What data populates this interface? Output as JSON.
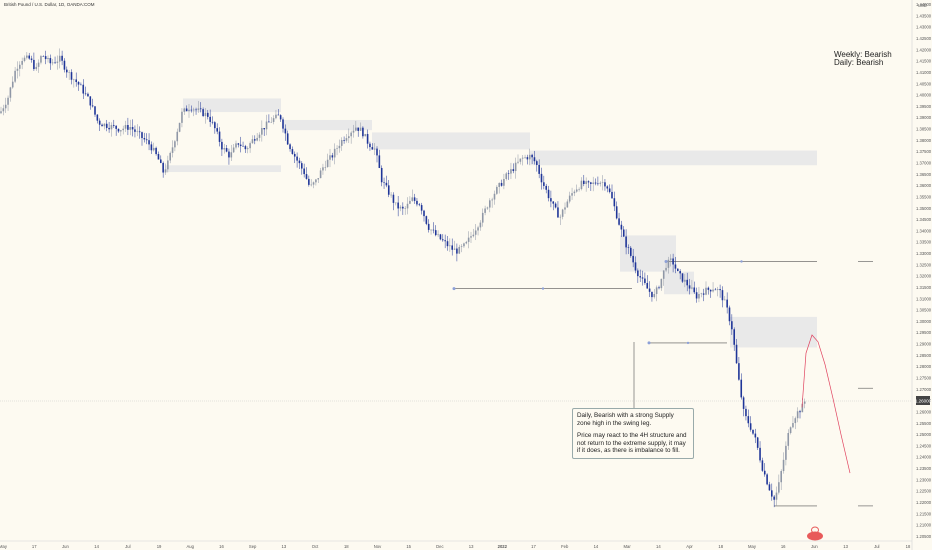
{
  "header": {
    "symbol_title": "British Pound / U.S. Dollar, 1D, OANDA:COM"
  },
  "bias": {
    "weekly": "Weekly: Bearish",
    "daily": "Daily: Bearish"
  },
  "note": {
    "line1": "Daily, Bearish with a strong Supply zone high in the swing leg.",
    "line2": "Price may react to the 4H structure and not return to the extreme supply, it may if it does, as there is imbalance to fill."
  },
  "price_axis": {
    "currency": "USD"
  },
  "colors": {
    "bull": "#8f97a6",
    "bear": "#1f3598",
    "zone": "#e9e9e9",
    "projection": "#e0425e",
    "background": "#fdfaf1"
  },
  "chart_data": {
    "type": "candlestick",
    "x_ticks": [
      "May",
      "17",
      "Jun",
      "14",
      "Jul",
      "19",
      "Aug",
      "16",
      "Sep",
      "13",
      "Oct",
      "18",
      "Nov",
      "15",
      "Dec",
      "13",
      "2022",
      "17",
      "Feb",
      "14",
      "Mar",
      "14",
      "Apr",
      "18",
      "May",
      "16",
      "Jun",
      "13",
      "Jul",
      "18"
    ],
    "y_ticks": [
      "1.44000",
      "1.43500",
      "1.43000",
      "1.42500",
      "1.42000",
      "1.41500",
      "1.41000",
      "1.40500",
      "1.40000",
      "1.39500",
      "1.39000",
      "1.38500",
      "1.38000",
      "1.37500",
      "1.37000",
      "1.36500",
      "1.36000",
      "1.35500",
      "1.35000",
      "1.34500",
      "1.34000",
      "1.33500",
      "1.33000",
      "1.32500",
      "1.32000",
      "1.31500",
      "1.31000",
      "1.30500",
      "1.30000",
      "1.29500",
      "1.29000",
      "1.28500",
      "1.28000",
      "1.27500",
      "1.27000",
      "1.26500",
      "1.26000",
      "1.25500",
      "1.25000",
      "1.24500",
      "1.24000",
      "1.23500",
      "1.23000",
      "1.22500",
      "1.22000",
      "1.21500",
      "1.21000",
      "1.20500"
    ],
    "ylim": [
      1.203,
      1.442
    ],
    "last_price": "1.26000",
    "waypoints": [
      [
        0,
        1.392
      ],
      [
        8,
        1.399
      ],
      [
        16,
        1.412
      ],
      [
        22,
        1.416
      ],
      [
        30,
        1.416
      ],
      [
        36,
        1.411
      ],
      [
        42,
        1.418
      ],
      [
        50,
        1.414
      ],
      [
        60,
        1.416
      ],
      [
        68,
        1.41
      ],
      [
        80,
        1.404
      ],
      [
        90,
        1.397
      ],
      [
        98,
        1.388
      ],
      [
        104,
        1.387
      ],
      [
        112,
        1.386
      ],
      [
        120,
        1.385
      ],
      [
        130,
        1.386
      ],
      [
        140,
        1.382
      ],
      [
        150,
        1.378
      ],
      [
        158,
        1.372
      ],
      [
        163,
        1.366
      ],
      [
        168,
        1.37
      ],
      [
        175,
        1.381
      ],
      [
        182,
        1.392
      ],
      [
        190,
        1.395
      ],
      [
        198,
        1.393
      ],
      [
        208,
        1.391
      ],
      [
        215,
        1.385
      ],
      [
        222,
        1.377
      ],
      [
        230,
        1.373
      ],
      [
        238,
        1.379
      ],
      [
        246,
        1.376
      ],
      [
        254,
        1.381
      ],
      [
        262,
        1.385
      ],
      [
        272,
        1.389
      ],
      [
        280,
        1.391
      ],
      [
        288,
        1.379
      ],
      [
        296,
        1.372
      ],
      [
        304,
        1.366
      ],
      [
        310,
        1.359
      ],
      [
        316,
        1.362
      ],
      [
        324,
        1.369
      ],
      [
        332,
        1.373
      ],
      [
        340,
        1.379
      ],
      [
        348,
        1.383
      ],
      [
        356,
        1.386
      ],
      [
        362,
        1.384
      ],
      [
        368,
        1.379
      ],
      [
        375,
        1.376
      ],
      [
        382,
        1.362
      ],
      [
        390,
        1.356
      ],
      [
        396,
        1.351
      ],
      [
        404,
        1.349
      ],
      [
        412,
        1.354
      ],
      [
        420,
        1.352
      ],
      [
        428,
        1.342
      ],
      [
        436,
        1.338
      ],
      [
        444,
        1.335
      ],
      [
        452,
        1.332
      ],
      [
        458,
        1.331
      ],
      [
        466,
        1.334
      ],
      [
        474,
        1.34
      ],
      [
        482,
        1.346
      ],
      [
        490,
        1.354
      ],
      [
        498,
        1.359
      ],
      [
        506,
        1.364
      ],
      [
        514,
        1.368
      ],
      [
        522,
        1.372
      ],
      [
        530,
        1.373
      ],
      [
        536,
        1.37
      ],
      [
        542,
        1.362
      ],
      [
        548,
        1.356
      ],
      [
        554,
        1.35
      ],
      [
        560,
        1.346
      ],
      [
        566,
        1.352
      ],
      [
        574,
        1.358
      ],
      [
        582,
        1.361
      ],
      [
        590,
        1.36
      ],
      [
        598,
        1.362
      ],
      [
        606,
        1.361
      ],
      [
        612,
        1.354
      ],
      [
        618,
        1.345
      ],
      [
        624,
        1.336
      ],
      [
        630,
        1.33
      ],
      [
        636,
        1.323
      ],
      [
        642,
        1.318
      ],
      [
        648,
        1.314
      ],
      [
        654,
        1.311
      ],
      [
        660,
        1.317
      ],
      [
        666,
        1.325
      ],
      [
        672,
        1.327
      ],
      [
        678,
        1.321
      ],
      [
        684,
        1.318
      ],
      [
        690,
        1.315
      ],
      [
        696,
        1.311
      ],
      [
        702,
        1.313
      ],
      [
        708,
        1.314
      ],
      [
        714,
        1.315
      ],
      [
        720,
        1.313
      ],
      [
        726,
        1.307
      ],
      [
        732,
        1.297
      ],
      [
        738,
        1.276
      ],
      [
        744,
        1.259
      ],
      [
        750,
        1.254
      ],
      [
        756,
        1.247
      ],
      [
        762,
        1.236
      ],
      [
        768,
        1.228
      ],
      [
        774,
        1.221
      ],
      [
        778,
        1.226
      ],
      [
        784,
        1.24
      ],
      [
        790,
        1.254
      ],
      [
        796,
        1.259
      ],
      [
        802,
        1.262
      ],
      [
        806,
        1.266
      ]
    ],
    "supply_zones": [
      {
        "x0": 183,
        "x1": 281,
        "y_top": 1.3985,
        "y_bot": 1.3925
      },
      {
        "x0": 283,
        "x1": 372,
        "y_top": 1.389,
        "y_bot": 1.3845
      },
      {
        "x0": 372,
        "x1": 530,
        "y_top": 1.3835,
        "y_bot": 1.376
      },
      {
        "x0": 530,
        "x1": 817,
        "y_top": 1.3755,
        "y_bot": 1.369
      },
      {
        "x0": 620,
        "x1": 676,
        "y_top": 1.338,
        "y_bot": 1.322
      },
      {
        "x0": 664,
        "x1": 694,
        "y_top": 1.322,
        "y_bot": 1.312
      },
      {
        "x0": 730,
        "x1": 817,
        "y_top": 1.302,
        "y_bot": 1.2885
      },
      {
        "x0": 165,
        "x1": 281,
        "y_top": 1.369,
        "y_bot": 1.366
      }
    ],
    "levels": [
      {
        "x0": 454,
        "x1": 632,
        "y": 1.3145
      },
      {
        "x0": 666,
        "x1": 817,
        "y": 1.3265
      },
      {
        "x0": 649,
        "x1": 727,
        "y": 1.2905
      },
      {
        "x0": 774,
        "x1": 817,
        "y": 1.2185
      },
      {
        "x0": 858,
        "x1": 873,
        "y": 1.3265
      },
      {
        "x0": 858,
        "x1": 873,
        "y": 1.2705
      },
      {
        "x0": 858,
        "x1": 873,
        "y": 1.2185
      }
    ],
    "projection": [
      [
        802,
        1.262
      ],
      [
        806,
        1.286
      ],
      [
        812,
        1.294
      ],
      [
        818,
        1.291
      ],
      [
        825,
        1.281
      ],
      [
        833,
        1.266
      ],
      [
        841,
        1.25
      ],
      [
        850,
        1.233
      ]
    ]
  }
}
